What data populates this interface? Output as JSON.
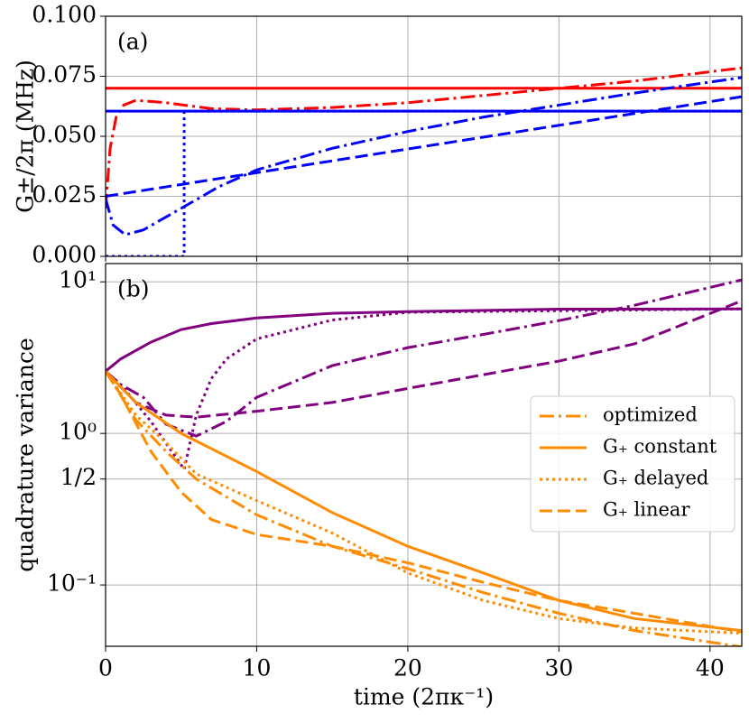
{
  "chart_data": [
    {
      "type": "line",
      "annotation": "(a)",
      "ylabel": "G±/2π (MHz)",
      "grid": true,
      "xlim": [
        0,
        42.1
      ],
      "xticks": [
        0,
        10,
        20,
        30,
        40
      ],
      "ylim": [
        0,
        0.1
      ],
      "yticks": [
        {
          "value": 0,
          "label": "0.000"
        },
        {
          "value": 0.025,
          "label": "0.025"
        },
        {
          "value": 0.05,
          "label": "0.050"
        },
        {
          "value": 0.075,
          "label": "0.075"
        },
        {
          "value": 0.1,
          "label": "0.100"
        }
      ],
      "series": [
        {
          "color": "#ff0000",
          "style": "solid",
          "x": [
            0,
            42.1
          ],
          "values": [
            0.07,
            0.07
          ]
        },
        {
          "color": "#ff0000",
          "style": "dashdot",
          "x": [
            0,
            0.3,
            0.7,
            1.2,
            2,
            4,
            7,
            10,
            15,
            20,
            25,
            30,
            35,
            42.1
          ],
          "values": [
            0.02,
            0.045,
            0.058,
            0.063,
            0.065,
            0.064,
            0.0615,
            0.061,
            0.062,
            0.064,
            0.067,
            0.07,
            0.073,
            0.0785
          ]
        },
        {
          "color": "#0000ff",
          "style": "solid",
          "x": [
            0,
            42.1
          ],
          "values": [
            0.0605,
            0.0605
          ]
        },
        {
          "color": "#0000ff",
          "style": "dashdot",
          "x": [
            0,
            0.5,
            1.3,
            2.5,
            5,
            7.5,
            10,
            15,
            20,
            25,
            30,
            35,
            42.1
          ],
          "values": [
            0.024,
            0.013,
            0.009,
            0.011,
            0.02,
            0.029,
            0.036,
            0.045,
            0.052,
            0.058,
            0.063,
            0.068,
            0.0745
          ]
        },
        {
          "color": "#0000ff",
          "style": "dashed",
          "x": [
            0,
            42.1
          ],
          "values": [
            0.025,
            0.0665
          ]
        },
        {
          "color": "#0000ff",
          "style": "dotted",
          "x": [
            0,
            5.2,
            5.2,
            42.1
          ],
          "values": [
            0,
            0,
            0.0605,
            0.0605
          ]
        }
      ]
    },
    {
      "type": "line",
      "annotation": "(b)",
      "ylabel": "quadrature variance",
      "xlabel": "time (2πκ⁻¹)",
      "grid": true,
      "log_y": true,
      "legend": "right",
      "xlim": [
        0,
        42.1
      ],
      "xticks": [
        0,
        10,
        20,
        30,
        40
      ],
      "ylim": [
        0.0394,
        13.2
      ],
      "yticks": [
        {
          "value": 10,
          "label": "10¹"
        },
        {
          "value": 1,
          "label": "10⁰"
        },
        {
          "value": 0.5,
          "label": "1/2"
        },
        {
          "value": 0.1,
          "label": "10⁻¹"
        }
      ],
      "series": [
        {
          "color": "#800080",
          "style": "solid",
          "x": [
            0,
            1,
            3,
            5,
            7,
            10,
            15,
            20,
            30,
            42.1
          ],
          "values": [
            2.57,
            3.1,
            4.0,
            4.84,
            5.3,
            5.78,
            6.2,
            6.36,
            6.6,
            6.63
          ]
        },
        {
          "color": "#800080",
          "style": "dashdot",
          "x": [
            0,
            1,
            2.5,
            4,
            6,
            8,
            10,
            15,
            20,
            25,
            30,
            35,
            42.1
          ],
          "values": [
            2.57,
            2.1,
            1.73,
            1.15,
            0.96,
            1.2,
            1.73,
            2.8,
            3.68,
            4.5,
            5.55,
            7.0,
            10.3
          ]
        },
        {
          "color": "#800080",
          "style": "dashed",
          "x": [
            0,
            2,
            4,
            6,
            10,
            15,
            20,
            25,
            30,
            35,
            42.1
          ],
          "values": [
            2.57,
            1.6,
            1.32,
            1.28,
            1.4,
            1.6,
            1.98,
            2.44,
            3.0,
            3.9,
            7.5
          ]
        },
        {
          "color": "#800080",
          "style": "dotted",
          "x": [
            0,
            1,
            3,
            5.2,
            6,
            7,
            8,
            10,
            15,
            20,
            42.1
          ],
          "values": [
            2.57,
            2.1,
            1.2,
            0.58,
            1.32,
            2.3,
            3.1,
            4.2,
            5.6,
            6.3,
            6.63
          ]
        },
        {
          "name": "optimized",
          "color": "#ff8c00",
          "style": "dashdot",
          "x": [
            0,
            2,
            4,
            6,
            10,
            15,
            20,
            25,
            30,
            35,
            42.1
          ],
          "values": [
            2.57,
            1.23,
            0.76,
            0.5,
            0.29,
            0.18,
            0.128,
            0.089,
            0.065,
            0.05,
            0.039
          ]
        },
        {
          "name": "G₊ constant",
          "color": "#ff8c00",
          "style": "solid",
          "x": [
            0,
            2,
            5,
            10,
            15,
            20,
            25,
            30,
            35,
            42.1
          ],
          "values": [
            2.57,
            1.6,
            1.0,
            0.56,
            0.3,
            0.18,
            0.12,
            0.079,
            0.06,
            0.05
          ]
        },
        {
          "name": "G₊ delayed",
          "color": "#ff8c00",
          "style": "dotted",
          "x": [
            0,
            2,
            4,
            6,
            10,
            15,
            20,
            25,
            30,
            35,
            42.1
          ],
          "values": [
            2.57,
            1.32,
            0.87,
            0.54,
            0.36,
            0.22,
            0.12,
            0.079,
            0.06,
            0.052,
            0.048
          ]
        },
        {
          "name": "G₊ linear",
          "color": "#ff8c00",
          "style": "dashed",
          "x": [
            0,
            1,
            3,
            5,
            7,
            10,
            15,
            20,
            25,
            30,
            35,
            42.1
          ],
          "values": [
            2.57,
            1.8,
            0.76,
            0.41,
            0.27,
            0.215,
            0.18,
            0.14,
            0.104,
            0.079,
            0.065,
            0.049
          ]
        }
      ]
    }
  ]
}
